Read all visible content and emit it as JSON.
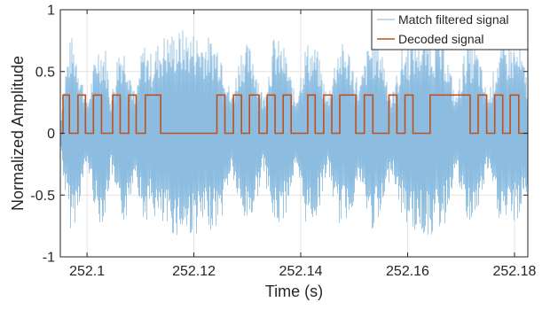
{
  "chart_data": {
    "type": "line",
    "title": "",
    "xlabel": "Time (s)",
    "ylabel": "Normalized Amplitude",
    "xlim": [
      252.095,
      252.1825
    ],
    "ylim": [
      -1,
      1
    ],
    "xticks": [
      252.1,
      252.12,
      252.14,
      252.16,
      252.18
    ],
    "xtick_labels": [
      "252.1",
      "252.12",
      "252.14",
      "252.16",
      "252.18"
    ],
    "yticks": [
      -1,
      -0.5,
      0,
      0.5,
      1
    ],
    "ytick_labels": [
      "-1",
      "-0.5",
      "0",
      "0.5",
      "1"
    ],
    "grid": true,
    "legend_position": "top-right",
    "series": [
      {
        "name": "Match filtered signal",
        "color": "#7fb6dd",
        "style": "dense oscillating waveform (amplitude envelope, bursts)",
        "envelope_x": [
          252.095,
          252.096,
          252.097,
          252.098,
          252.1,
          252.102,
          252.1035,
          252.1045,
          252.106,
          252.1075,
          252.109,
          252.1105,
          252.112,
          252.114,
          252.118,
          252.122,
          252.125,
          252.127,
          252.129,
          252.131,
          252.133,
          252.135,
          252.137,
          252.139,
          252.141,
          252.143,
          252.145,
          252.147,
          252.149,
          252.151,
          252.153,
          252.155,
          252.157,
          252.159,
          252.161,
          252.164,
          252.167,
          252.169,
          252.171,
          252.173,
          252.175,
          252.177,
          252.179,
          252.181,
          252.1825
        ],
        "envelope_y": [
          0.1,
          0.55,
          0.8,
          0.7,
          0.25,
          0.75,
          0.7,
          0.3,
          0.75,
          0.7,
          0.3,
          0.75,
          0.65,
          0.8,
          0.85,
          0.8,
          0.75,
          0.3,
          0.75,
          0.7,
          0.3,
          0.8,
          0.7,
          0.3,
          0.75,
          0.7,
          0.3,
          0.75,
          0.7,
          0.4,
          0.8,
          0.75,
          0.3,
          0.7,
          0.8,
          0.85,
          0.75,
          0.3,
          0.75,
          0.7,
          0.3,
          0.7,
          0.75,
          0.7,
          0.45
        ]
      },
      {
        "name": "Decoded signal",
        "color": "#c0501e",
        "style": "step",
        "high_value": 0.31,
        "low_value": 0,
        "x": [
          252.095,
          252.0955,
          252.0955,
          252.0967,
          252.0967,
          252.0983,
          252.0983,
          252.0997,
          252.0997,
          252.1012,
          252.1012,
          252.1027,
          252.1027,
          252.1048,
          252.1048,
          252.1062,
          252.1062,
          252.1078,
          252.1078,
          252.1092,
          252.1092,
          252.1109,
          252.1109,
          252.1138,
          252.1138,
          252.1243,
          252.1243,
          252.1258,
          252.1258,
          252.1274,
          252.1274,
          252.1289,
          252.1289,
          252.1304,
          252.1304,
          252.1322,
          252.1322,
          252.1337,
          252.1337,
          252.1352,
          252.1352,
          252.1367,
          252.1367,
          252.1382,
          252.1382,
          252.1413,
          252.1413,
          252.1427,
          252.1427,
          252.1443,
          252.1443,
          252.1458,
          252.1458,
          252.1473,
          252.1473,
          252.1503,
          252.1503,
          252.1519,
          252.1519,
          252.1535,
          252.1535,
          252.1565,
          252.1565,
          252.158,
          252.158,
          252.1595,
          252.1595,
          252.161,
          252.161,
          252.1642,
          252.1642,
          252.1717,
          252.1717,
          252.1732,
          252.1732,
          252.1748,
          252.1748,
          252.1763,
          252.1763,
          252.1778,
          252.1778,
          252.1792,
          252.1792,
          252.1808,
          252.1808,
          252.1825
        ],
        "y": [
          0,
          0,
          0.31,
          0.31,
          0,
          0,
          0.31,
          0.31,
          0,
          0,
          0.31,
          0.31,
          0,
          0,
          0.31,
          0.31,
          0,
          0,
          0.31,
          0.31,
          0,
          0,
          0.31,
          0.31,
          0,
          0,
          0.31,
          0.31,
          0,
          0,
          0.31,
          0.31,
          0,
          0,
          0.31,
          0.31,
          0,
          0,
          0.31,
          0.31,
          0,
          0,
          0.31,
          0.31,
          0,
          0,
          0.31,
          0.31,
          0,
          0,
          0.31,
          0.31,
          0,
          0,
          0.31,
          0.31,
          0,
          0,
          0.31,
          0.31,
          0,
          0,
          0.31,
          0.31,
          0,
          0,
          0.31,
          0.31,
          0,
          0,
          0.31,
          0.31,
          0,
          0,
          0.31,
          0.31,
          0,
          0,
          0.31,
          0.31,
          0,
          0,
          0.31,
          0.31,
          0,
          0
        ]
      }
    ]
  }
}
